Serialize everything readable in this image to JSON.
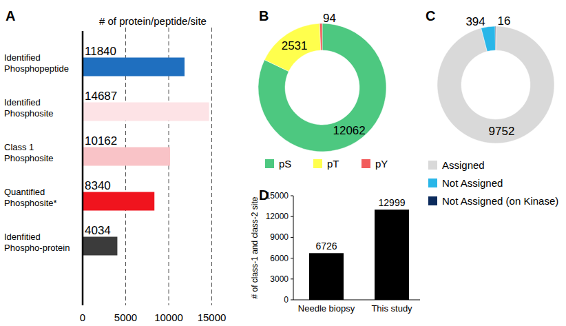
{
  "chart_data": [
    {
      "type": "bar",
      "title": "A",
      "orientation": "horizontal",
      "x_label": "# of protein/peptide/site",
      "categories": [
        "Identified Phosphopeptide",
        "Identified Phosphosite",
        "Class 1 Phosphosite",
        "Quantified Phosphosite*",
        "Idenfitied Phospho-protein"
      ],
      "values": [
        11840,
        14687,
        10162,
        8340,
        4034
      ],
      "colors": [
        "#1f6fbf",
        "#fde3e6",
        "#f9c3c7",
        "#f0141e",
        "#3b3b3b"
      ],
      "xlim": [
        0,
        15000
      ],
      "xticks": [
        0,
        5000,
        10000,
        15000
      ],
      "grid": true,
      "data_labels": true
    },
    {
      "type": "donut",
      "title": "B",
      "categories": [
        "pS",
        "pT",
        "pY"
      ],
      "values": [
        12062,
        2531,
        94
      ],
      "colors": [
        "#4dc880",
        "#ffff4d",
        "#f25c5c"
      ],
      "data_labels": true,
      "legend": "bottom"
    },
    {
      "type": "donut",
      "title": "C",
      "categories": [
        "Assigned",
        "Not Assigned",
        "Not Assigned (on Kinase)"
      ],
      "values": [
        9752,
        394,
        16
      ],
      "colors": [
        "#d9d9d9",
        "#29b6e8",
        "#0b2a5c"
      ],
      "data_labels": true,
      "legend": "bottom"
    },
    {
      "type": "bar",
      "title": "D",
      "y_label": "# of class-1 and class-2 site",
      "categories": [
        "Needle biopsy",
        "This study"
      ],
      "values": [
        6726,
        12999
      ],
      "color": "#000000",
      "ylim": [
        0,
        15000
      ],
      "yticks": [
        0,
        3000,
        6000,
        9000,
        12000,
        15000
      ],
      "data_labels": true
    }
  ]
}
